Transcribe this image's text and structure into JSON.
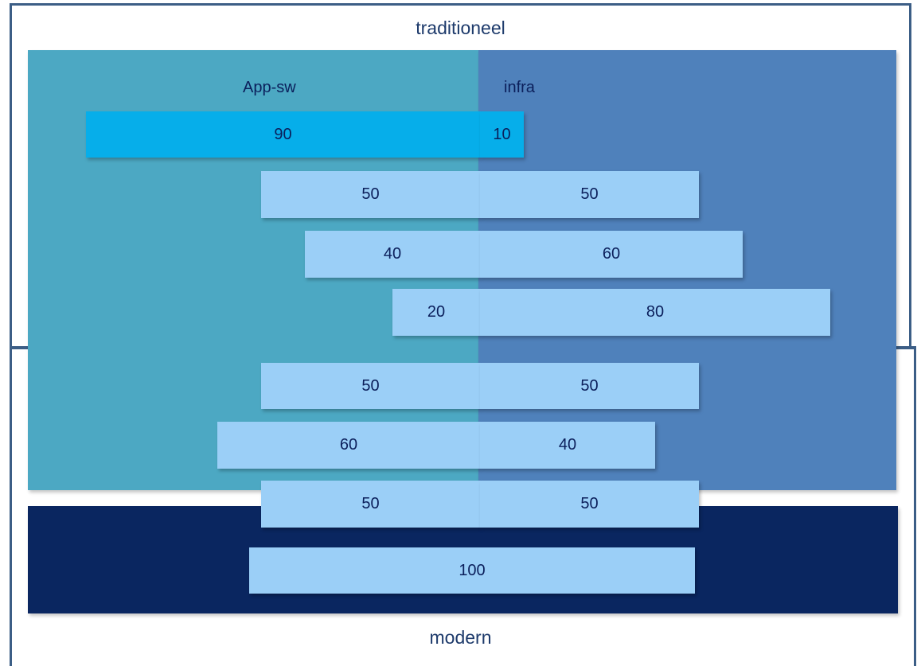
{
  "headings": {
    "top": "traditioneel",
    "bottom": "modern"
  },
  "regions": {
    "left_label": "App-sw",
    "right_label": "infra"
  },
  "colors": {
    "app_region": "#4ca8c3",
    "infra_region": "#4f81bb",
    "modern_region": "#0a2660",
    "first_bar": "#06aeea",
    "bar": "#9bcff7",
    "frame": "#3c5e86",
    "text": "#0b1f5b"
  },
  "chart_data": {
    "type": "bar",
    "orientation": "horizontal-diverging",
    "series": [
      {
        "name": "App-sw",
        "values": [
          90,
          50,
          40,
          20,
          50,
          60,
          50
        ]
      },
      {
        "name": "infra",
        "values": [
          10,
          50,
          60,
          80,
          50,
          40,
          50
        ]
      }
    ],
    "single_bar_value": 100,
    "xlim": [
      0,
      100
    ]
  }
}
